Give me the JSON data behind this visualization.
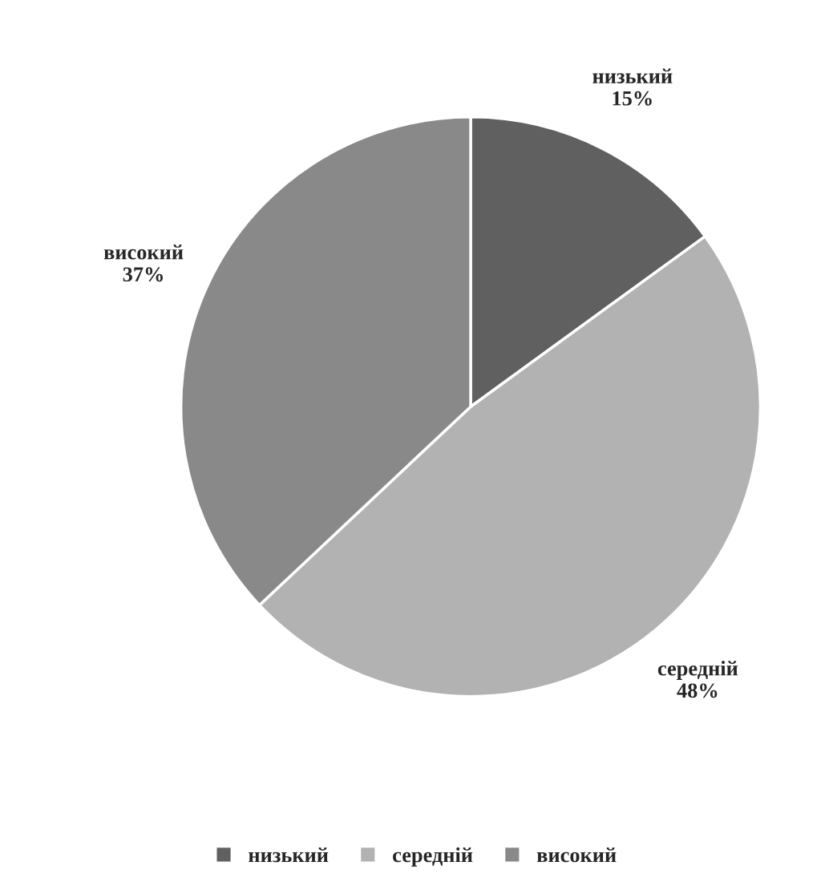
{
  "chart_data": {
    "type": "pie",
    "categories": [
      "низький",
      "середній",
      "високий"
    ],
    "values": [
      15,
      48,
      37
    ],
    "colors": [
      "#606060",
      "#b2b2b2",
      "#898989"
    ],
    "value_labels": [
      "15%",
      "48%",
      "37%"
    ],
    "legend": "bottom"
  }
}
